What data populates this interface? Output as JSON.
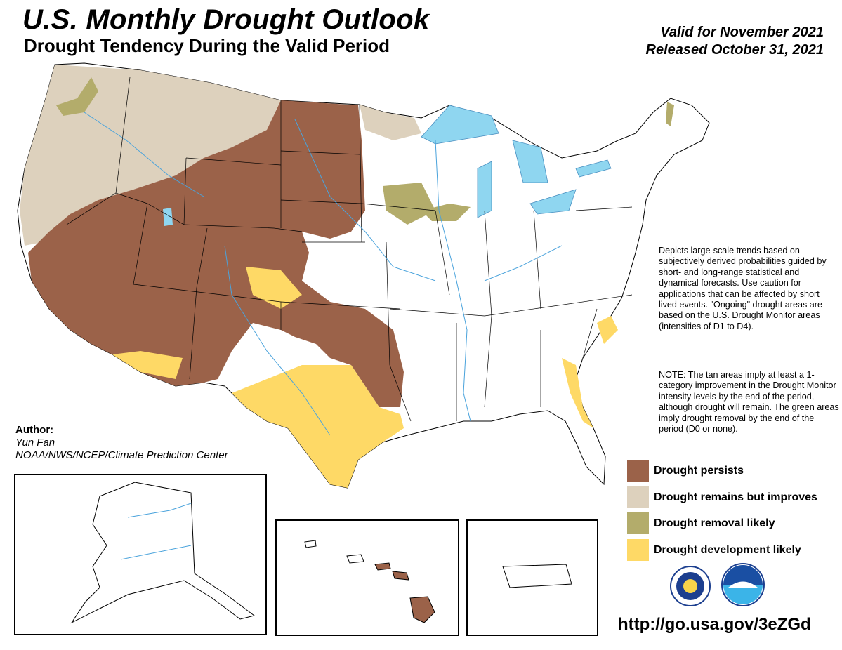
{
  "header": {
    "title": "U.S. Monthly Drought Outlook",
    "subtitle": "Drought Tendency During the Valid Period",
    "valid_line": "Valid for November 2021",
    "released_line": "Released October 31, 2021"
  },
  "description": "Depicts large-scale trends based on subjectively derived probabilities guided by short- and long-range statistical and dynamical forecasts. Use caution for applications that can be affected by short lived events. \"Ongoing\" drought areas are based on the U.S. Drought Monitor areas (intensities of D1 to D4).",
  "note": "NOTE: The tan areas imply at least a 1-category improvement in the Drought Monitor intensity levels by the end of the period, although drought will remain. The green areas imply drought removal by the end of the period (D0 or none).",
  "legend": [
    {
      "label": "Drought persists",
      "color": "#9b6249"
    },
    {
      "label": "Drought remains but improves",
      "color": "#ddd1bd"
    },
    {
      "label": "Drought removal likely",
      "color": "#b3ac6b"
    },
    {
      "label": "Drought development likely",
      "color": "#fed966"
    }
  ],
  "author": {
    "heading": "Author:",
    "name": "Yun Fan",
    "org": "NOAA/NWS/NCEP/Climate Prediction Center"
  },
  "url": "http://go.usa.gov/3eZGd",
  "colors": {
    "persists": "#9b6249",
    "improves": "#ddd1bd",
    "removal": "#b3ac6b",
    "development": "#fed966",
    "water": "#8fd6f0",
    "rivers": "#4aa3dc"
  },
  "logos": [
    "noaa-nws-seal-icon",
    "noaa-logo-icon"
  ]
}
